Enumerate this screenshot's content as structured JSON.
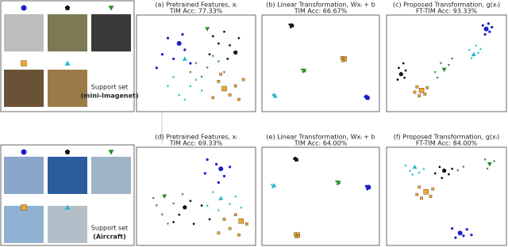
{
  "support_sets": [
    {
      "label": "Support set",
      "dataset": "(mini-Imagenet)"
    },
    {
      "label": "Support set",
      "dataset": "(Aircraft)"
    }
  ],
  "classes": [
    {
      "color": "#1d1dcc",
      "marker": "circle"
    },
    {
      "color": "#111111",
      "marker": "pentagon"
    },
    {
      "color": "#2a8a2a",
      "marker": "triangle-down"
    },
    {
      "color": "#f5a623",
      "marker": "square"
    },
    {
      "color": "#27b7c9",
      "marker": "triangle-up"
    }
  ],
  "panels": [
    {
      "title": "(a) Pretrained Features, xᵢ",
      "subtitle": "TIM Acc: 77.33%",
      "points": [
        [
          [
            35,
            28
          ],
          [
            20,
            40
          ],
          [
            30,
            45
          ],
          [
            40,
            35
          ],
          [
            25,
            22
          ],
          [
            45,
            50
          ],
          [
            15,
            55
          ],
          [
            38,
            18
          ]
        ],
        [
          [
            85,
            38
          ],
          [
            65,
            20
          ],
          [
            75,
            15
          ],
          [
            80,
            30
          ],
          [
            70,
            28
          ],
          [
            62,
            40
          ],
          [
            78,
            45
          ],
          [
            88,
            22
          ]
        ],
        [
          [
            60,
            12
          ],
          [
            50,
            50
          ],
          [
            60,
            55
          ],
          [
            70,
            48
          ],
          [
            45,
            60
          ],
          [
            75,
            60
          ],
          [
            55,
            65
          ],
          [
            65,
            42
          ]
        ],
        [
          [
            75,
            78
          ],
          [
            70,
            70
          ],
          [
            85,
            75
          ],
          [
            80,
            85
          ],
          [
            92,
            68
          ],
          [
            65,
            88
          ],
          [
            88,
            90
          ],
          [
            72,
            62
          ]
        ],
        [
          [
            40,
            45
          ],
          [
            30,
            65
          ],
          [
            45,
            75
          ],
          [
            35,
            85
          ],
          [
            55,
            80
          ],
          [
            25,
            75
          ],
          [
            50,
            68
          ],
          [
            40,
            90
          ]
        ]
      ]
    },
    {
      "title": "(b) Linear Transformation, Wxᵢ + b",
      "subtitle": "TIM Acc: 66.67%",
      "points": [
        [
          [
            92,
            88
          ],
          [
            90,
            87
          ],
          [
            93,
            89
          ],
          [
            91,
            86
          ]
        ],
        [
          [
            24,
            8
          ],
          [
            22,
            7
          ],
          [
            25,
            9
          ],
          [
            23,
            10
          ]
        ],
        [
          [
            35,
            58
          ],
          [
            33,
            57
          ],
          [
            36,
            59
          ],
          [
            34,
            60
          ]
        ],
        [
          [
            71,
            45
          ],
          [
            69,
            44
          ],
          [
            72,
            46
          ],
          [
            70,
            47
          ]
        ],
        [
          [
            9,
            86
          ],
          [
            7,
            85
          ],
          [
            10,
            87
          ],
          [
            8,
            84
          ]
        ]
      ]
    },
    {
      "title": "(c) Proposed Transformation, g(xᵢ)",
      "subtitle": "FT-TIM Acc: 93.33%",
      "points": [
        [
          [
            85,
            12
          ],
          [
            82,
            8
          ],
          [
            88,
            15
          ],
          [
            84,
            18
          ],
          [
            90,
            10
          ],
          [
            87,
            6
          ]
        ],
        [
          [
            10,
            62
          ],
          [
            8,
            55
          ],
          [
            12,
            50
          ],
          [
            14,
            58
          ],
          [
            7,
            68
          ],
          [
            13,
            66
          ]
        ],
        [
          [
            48,
            57
          ],
          [
            40,
            60
          ],
          [
            45,
            50
          ],
          [
            52,
            52
          ],
          [
            55,
            45
          ],
          [
            42,
            66
          ]
        ],
        [
          [
            28,
            80
          ],
          [
            24,
            76
          ],
          [
            31,
            84
          ],
          [
            26,
            86
          ],
          [
            33,
            77
          ],
          [
            22,
            82
          ]
        ],
        [
          [
            74,
            40
          ],
          [
            70,
            35
          ],
          [
            76,
            30
          ],
          [
            78,
            38
          ],
          [
            72,
            44
          ],
          [
            80,
            34
          ]
        ]
      ]
    },
    {
      "title": "(d) Pretrained Features, xᵢ",
      "subtitle": "TIM Acc: 69.33%",
      "points": [
        [
          [
            72,
            20
          ],
          [
            60,
            10
          ],
          [
            68,
            15
          ],
          [
            75,
            28
          ],
          [
            58,
            25
          ],
          [
            70,
            35
          ],
          [
            80,
            18
          ]
        ],
        [
          [
            40,
            62
          ],
          [
            45,
            55
          ],
          [
            35,
            70
          ],
          [
            55,
            60
          ],
          [
            48,
            80
          ],
          [
            30,
            78
          ],
          [
            62,
            75
          ]
        ],
        [
          [
            22,
            50
          ],
          [
            15,
            60
          ],
          [
            30,
            58
          ],
          [
            20,
            70
          ],
          [
            38,
            48
          ],
          [
            25,
            80
          ],
          [
            12,
            52
          ]
        ],
        [
          [
            90,
            77
          ],
          [
            80,
            85
          ],
          [
            75,
            75
          ],
          [
            88,
            92
          ],
          [
            95,
            80
          ],
          [
            70,
            90
          ],
          [
            85,
            70
          ]
        ],
        [
          [
            72,
            52
          ],
          [
            65,
            45
          ],
          [
            80,
            58
          ],
          [
            85,
            50
          ],
          [
            60,
            60
          ],
          [
            90,
            62
          ],
          [
            70,
            65
          ]
        ]
      ]
    },
    {
      "title": "(e) Linear Transformation, Wxᵢ + b",
      "subtitle": "TIM Acc: 64.00%",
      "points": [
        [
          [
            93,
            40
          ],
          [
            91,
            39
          ],
          [
            94,
            41
          ],
          [
            92,
            42
          ]
        ],
        [
          [
            28,
            10
          ],
          [
            26,
            9
          ],
          [
            29,
            11
          ],
          [
            27,
            8
          ]
        ],
        [
          [
            66,
            35
          ],
          [
            64,
            34
          ],
          [
            67,
            36
          ],
          [
            65,
            37
          ]
        ],
        [
          [
            29,
            92
          ],
          [
            27,
            91
          ],
          [
            30,
            93
          ],
          [
            28,
            94
          ]
        ],
        [
          [
            8,
            38
          ],
          [
            6,
            37
          ],
          [
            9,
            39
          ],
          [
            7,
            40
          ]
        ]
      ]
    },
    {
      "title": "(f) Proposed Transformation, g(xᵢ)",
      "subtitle": "FT-TIM Acc: 84.00%",
      "points": [
        [
          [
            62,
            90
          ],
          [
            55,
            85
          ],
          [
            68,
            86
          ],
          [
            58,
            95
          ],
          [
            65,
            93
          ],
          [
            72,
            92
          ]
        ],
        [
          [
            48,
            22
          ],
          [
            44,
            18
          ],
          [
            52,
            26
          ],
          [
            40,
            25
          ],
          [
            55,
            20
          ],
          [
            46,
            30
          ]
        ],
        [
          [
            88,
            15
          ],
          [
            84,
            10
          ],
          [
            92,
            12
          ],
          [
            86,
            20
          ],
          [
            60,
            22
          ],
          [
            65,
            18
          ]
        ],
        [
          [
            32,
            45
          ],
          [
            26,
            40
          ],
          [
            36,
            50
          ],
          [
            28,
            52
          ],
          [
            38,
            42
          ],
          [
            24,
            48
          ]
        ],
        [
          [
            22,
            18
          ],
          [
            18,
            22
          ],
          [
            26,
            24
          ],
          [
            14,
            16
          ],
          [
            30,
            20
          ],
          [
            20,
            26
          ]
        ]
      ]
    }
  ]
}
